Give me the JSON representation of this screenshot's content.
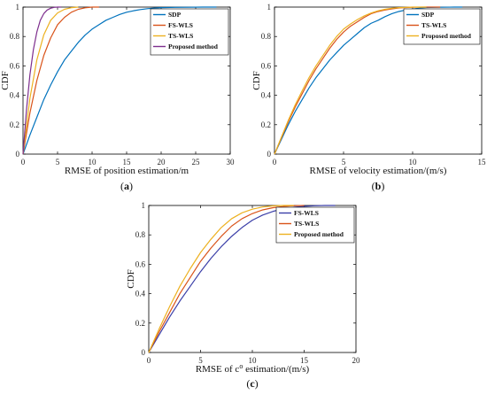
{
  "colors": {
    "blue": "#0072BD",
    "red": "#D95319",
    "yellow": "#EDB120",
    "purple": "#7E2F8E",
    "darkblue": "#3B3FA8"
  },
  "chart_data": [
    {
      "type": "line",
      "caption_letter": "a",
      "xlabel": "RMSE of position estimation/m",
      "ylabel": "CDF",
      "xlim": [
        0,
        30
      ],
      "ylim": [
        0,
        1
      ],
      "xticks": [
        0,
        5,
        10,
        15,
        20,
        25,
        30
      ],
      "yticks": [
        0,
        0.2,
        0.4,
        0.6,
        0.8,
        1
      ],
      "legend_position": "top-right",
      "series": [
        {
          "name": "SDP",
          "color": "blue",
          "x": [
            0,
            1,
            2,
            3,
            4,
            5,
            6,
            7,
            8,
            9,
            10,
            11,
            12,
            13,
            14,
            15,
            16,
            17,
            18,
            19,
            20,
            22,
            24,
            26,
            28
          ],
          "y": [
            0,
            0.13,
            0.25,
            0.37,
            0.47,
            0.56,
            0.64,
            0.7,
            0.76,
            0.81,
            0.85,
            0.88,
            0.91,
            0.93,
            0.95,
            0.965,
            0.975,
            0.983,
            0.989,
            0.993,
            0.996,
            0.998,
            0.999,
            1,
            1
          ]
        },
        {
          "name": "FS-WLS",
          "color": "red",
          "x": [
            0,
            1,
            2,
            3,
            4,
            5,
            6,
            7,
            8,
            9,
            10,
            11
          ],
          "y": [
            0,
            0.28,
            0.5,
            0.67,
            0.79,
            0.88,
            0.93,
            0.965,
            0.985,
            0.995,
            1,
            1
          ]
        },
        {
          "name": "TS-WLS",
          "color": "yellow",
          "x": [
            0,
            1,
            2,
            3,
            4,
            5,
            6,
            7,
            8
          ],
          "y": [
            0,
            0.38,
            0.64,
            0.81,
            0.91,
            0.96,
            0.985,
            0.996,
            1
          ]
        },
        {
          "name": "Proposed method",
          "color": "purple",
          "x": [
            0,
            0.5,
            1,
            1.5,
            2,
            2.5,
            3,
            3.5,
            4,
            4.5,
            5,
            5.5
          ],
          "y": [
            0,
            0.3,
            0.54,
            0.71,
            0.83,
            0.91,
            0.955,
            0.98,
            0.992,
            0.998,
            1,
            1
          ]
        }
      ]
    },
    {
      "type": "line",
      "caption_letter": "b",
      "xlabel": "RMSE of velocity estimation/(m/s)",
      "ylabel": "CDF",
      "xlim": [
        0,
        15
      ],
      "ylim": [
        0,
        1
      ],
      "xticks": [
        0,
        5,
        10,
        15
      ],
      "yticks": [
        0,
        0.2,
        0.4,
        0.6,
        0.8,
        1
      ],
      "legend_position": "top-right",
      "series": [
        {
          "name": "SDP",
          "color": "blue",
          "x": [
            0,
            0.5,
            1,
            1.5,
            2,
            2.5,
            3,
            3.5,
            4,
            4.5,
            5,
            5.5,
            6,
            6.5,
            7,
            7.5,
            8,
            8.5,
            9,
            9.5,
            10,
            10.5,
            11,
            12,
            13,
            13.6
          ],
          "y": [
            0,
            0.1,
            0.2,
            0.29,
            0.37,
            0.45,
            0.52,
            0.58,
            0.64,
            0.69,
            0.74,
            0.78,
            0.82,
            0.86,
            0.89,
            0.91,
            0.935,
            0.955,
            0.97,
            0.98,
            0.987,
            0.993,
            0.997,
            0.999,
            1,
            1
          ]
        },
        {
          "name": "TS-WLS",
          "color": "red",
          "x": [
            0,
            0.5,
            1,
            1.5,
            2,
            2.5,
            3,
            3.5,
            4,
            4.5,
            5,
            5.5,
            6,
            6.5,
            7,
            7.5,
            8,
            8.5,
            9,
            9.5,
            10,
            11,
            12
          ],
          "y": [
            0,
            0.11,
            0.22,
            0.32,
            0.41,
            0.5,
            0.58,
            0.65,
            0.72,
            0.78,
            0.83,
            0.87,
            0.9,
            0.93,
            0.955,
            0.97,
            0.98,
            0.988,
            0.994,
            0.997,
            0.999,
            1,
            1
          ]
        },
        {
          "name": "Proposed method",
          "color": "yellow",
          "x": [
            0,
            0.5,
            1,
            1.5,
            2,
            2.5,
            3,
            3.5,
            4,
            4.5,
            5,
            5.5,
            6,
            6.5,
            7,
            7.5,
            8,
            8.5,
            9,
            9.5,
            10,
            11
          ],
          "y": [
            0,
            0.115,
            0.23,
            0.335,
            0.43,
            0.52,
            0.6,
            0.67,
            0.74,
            0.8,
            0.85,
            0.885,
            0.915,
            0.94,
            0.96,
            0.975,
            0.985,
            0.992,
            0.996,
            0.998,
            1,
            1
          ]
        }
      ]
    },
    {
      "type": "line",
      "caption_letter": "c",
      "xlabel_prefix": "RMSE of c",
      "xlabel_superscript": "o",
      "xlabel_suffix": " estimation/(m/s)",
      "ylabel": "CDF",
      "xlim": [
        0,
        20
      ],
      "ylim": [
        0,
        1
      ],
      "xticks": [
        0,
        5,
        10,
        15,
        20
      ],
      "yticks": [
        0,
        0.2,
        0.4,
        0.6,
        0.8,
        1
      ],
      "legend_position": "top-right",
      "series": [
        {
          "name": "FS-WLS",
          "color": "darkblue",
          "x": [
            0,
            1,
            2,
            3,
            4,
            5,
            6,
            7,
            8,
            9,
            10,
            11,
            12,
            13,
            14,
            15,
            16,
            17,
            18
          ],
          "y": [
            0,
            0.12,
            0.24,
            0.35,
            0.45,
            0.55,
            0.64,
            0.72,
            0.79,
            0.85,
            0.9,
            0.935,
            0.96,
            0.977,
            0.988,
            0.994,
            0.998,
            1,
            1
          ]
        },
        {
          "name": "TS-WLS",
          "color": "red",
          "x": [
            0,
            1,
            2,
            3,
            4,
            5,
            6,
            7,
            8,
            9,
            10,
            11,
            12,
            13,
            14,
            15
          ],
          "y": [
            0,
            0.14,
            0.27,
            0.4,
            0.51,
            0.62,
            0.71,
            0.79,
            0.86,
            0.91,
            0.945,
            0.97,
            0.985,
            0.993,
            0.998,
            1
          ]
        },
        {
          "name": "Proposed method",
          "color": "yellow",
          "x": [
            0,
            1,
            2,
            3,
            4,
            5,
            6,
            7,
            8,
            9,
            10,
            11,
            12,
            13,
            14
          ],
          "y": [
            0,
            0.16,
            0.31,
            0.45,
            0.57,
            0.68,
            0.77,
            0.85,
            0.91,
            0.95,
            0.975,
            0.99,
            0.997,
            1,
            1
          ]
        }
      ]
    }
  ]
}
